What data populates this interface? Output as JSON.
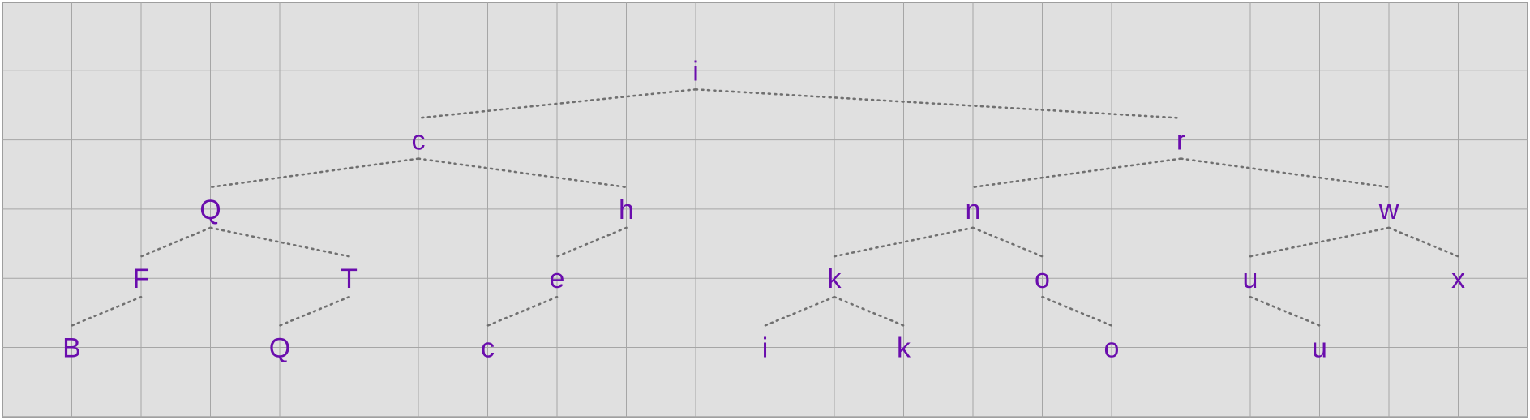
{
  "colors": {
    "background": "#e0e0e0",
    "grid": "#a6a6a6",
    "border": "#9e9e9e",
    "edge": "#707070",
    "label": "#6a0dad"
  },
  "tree": {
    "nodes": [
      {
        "id": "n1",
        "label": "i",
        "col": 10,
        "row": 1
      },
      {
        "id": "n2",
        "label": "c",
        "col": 6,
        "row": 2
      },
      {
        "id": "n3",
        "label": "r",
        "col": 17,
        "row": 2
      },
      {
        "id": "n4",
        "label": "Q",
        "col": 3,
        "row": 3
      },
      {
        "id": "n5",
        "label": "h",
        "col": 9,
        "row": 3
      },
      {
        "id": "n6",
        "label": "n",
        "col": 14,
        "row": 3
      },
      {
        "id": "n7",
        "label": "w",
        "col": 20,
        "row": 3
      },
      {
        "id": "n8",
        "label": "F",
        "col": 2,
        "row": 4
      },
      {
        "id": "n9",
        "label": "T",
        "col": 5,
        "row": 4
      },
      {
        "id": "n10",
        "label": "e",
        "col": 8,
        "row": 4
      },
      {
        "id": "n11",
        "label": "k",
        "col": 12,
        "row": 4
      },
      {
        "id": "n12",
        "label": "o",
        "col": 15,
        "row": 4
      },
      {
        "id": "n13",
        "label": "u",
        "col": 18,
        "row": 4
      },
      {
        "id": "n14",
        "label": "x",
        "col": 21,
        "row": 4
      },
      {
        "id": "n15",
        "label": "B",
        "col": 1,
        "row": 5
      },
      {
        "id": "n16",
        "label": "Q",
        "col": 4,
        "row": 5
      },
      {
        "id": "n17",
        "label": "c",
        "col": 7,
        "row": 5
      },
      {
        "id": "n18",
        "label": "i",
        "col": 11,
        "row": 5
      },
      {
        "id": "n19",
        "label": "k",
        "col": 13,
        "row": 5
      },
      {
        "id": "n20",
        "label": "o",
        "col": 16,
        "row": 5
      },
      {
        "id": "n21",
        "label": "u",
        "col": 19,
        "row": 5
      }
    ],
    "edges": [
      [
        "n1",
        "n2"
      ],
      [
        "n1",
        "n3"
      ],
      [
        "n2",
        "n4"
      ],
      [
        "n2",
        "n5"
      ],
      [
        "n3",
        "n6"
      ],
      [
        "n3",
        "n7"
      ],
      [
        "n4",
        "n8"
      ],
      [
        "n4",
        "n9"
      ],
      [
        "n5",
        "n10"
      ],
      [
        "n6",
        "n11"
      ],
      [
        "n6",
        "n12"
      ],
      [
        "n7",
        "n13"
      ],
      [
        "n7",
        "n14"
      ],
      [
        "n8",
        "n15"
      ],
      [
        "n9",
        "n16"
      ],
      [
        "n10",
        "n17"
      ],
      [
        "n11",
        "n18"
      ],
      [
        "n11",
        "n19"
      ],
      [
        "n12",
        "n20"
      ],
      [
        "n13",
        "n21"
      ]
    ]
  }
}
